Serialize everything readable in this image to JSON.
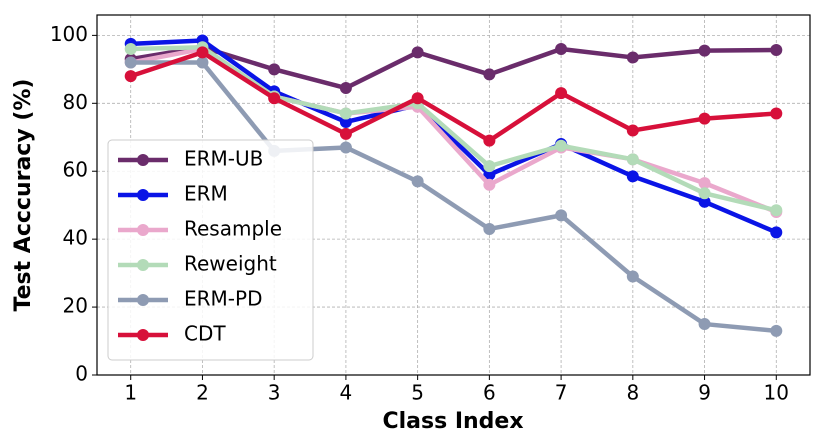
{
  "chart_data": {
    "type": "line",
    "x_label": "Class Index",
    "y_label": "Test Acccuracy (%)",
    "x": [
      1,
      2,
      3,
      4,
      5,
      6,
      7,
      8,
      9,
      10
    ],
    "xlim": [
      0.53,
      10.47
    ],
    "xticks": [
      1,
      2,
      3,
      4,
      5,
      6,
      7,
      8,
      9,
      10
    ],
    "ylim": [
      0,
      106
    ],
    "yticks": [
      0,
      20,
      40,
      60,
      80,
      100
    ],
    "grid": true,
    "legend": "lower left",
    "series": [
      {
        "name": "ERM-UB",
        "color": "#6a2c6b",
        "values": [
          93,
          96.5,
          90,
          84.5,
          95,
          88.5,
          96,
          93.5,
          95.5,
          95.7
        ]
      },
      {
        "name": "ERM",
        "color": "#0a14e6",
        "values": [
          97.5,
          98.5,
          83.5,
          74.5,
          79.5,
          59,
          68,
          58.5,
          51,
          42
        ]
      },
      {
        "name": "Resample",
        "color": "#eaa8cc",
        "values": [
          92,
          96,
          82,
          77,
          79,
          56,
          67,
          63.5,
          56.5,
          48
        ]
      },
      {
        "name": "Reweight",
        "color": "#b3dbb8",
        "values": [
          96,
          96.5,
          82,
          77,
          80,
          61.5,
          67.5,
          63.5,
          53.5,
          48.5
        ]
      },
      {
        "name": "ERM-PD",
        "color": "#8e9bb3",
        "values": [
          92,
          92,
          66,
          67,
          57,
          43,
          47,
          29,
          15,
          13
        ]
      },
      {
        "name": "CDT",
        "color": "#d7103a",
        "values": [
          88,
          95,
          81.5,
          71,
          81.5,
          69,
          83,
          72,
          75.5,
          77
        ]
      }
    ]
  }
}
